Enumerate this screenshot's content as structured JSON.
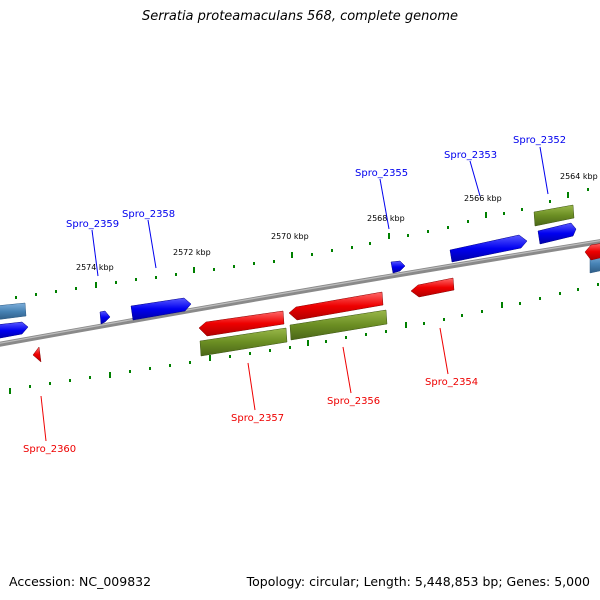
{
  "title": "Serratia proteamaculans 568, complete genome",
  "footer": {
    "accession": "Accession: NC_009832",
    "stats": "Topology: circular; Length: 5,448,853 bp; Genes: 5,000"
  },
  "scale_labels": [
    "2574 kbp",
    "2572 kbp",
    "2570 kbp",
    "2568 kbp",
    "2566 kbp",
    "2564 kbp"
  ],
  "gene_labels": {
    "spro_2352": "Spro_2352",
    "spro_2353": "Spro_2353",
    "spro_2354": "Spro_2354",
    "spro_2355": "Spro_2355",
    "spro_2356": "Spro_2356",
    "spro_2357": "Spro_2357",
    "spro_2358": "Spro_2358",
    "spro_2359": "Spro_2359",
    "spro_2360": "Spro_2360"
  },
  "colors": {
    "forward_gene": "#0000ee",
    "reverse_gene": "#ee0000",
    "rna_gene": "#6b8e23",
    "other_gene": "#4682b4",
    "backbone": "#808080",
    "tick": "#008000"
  }
}
